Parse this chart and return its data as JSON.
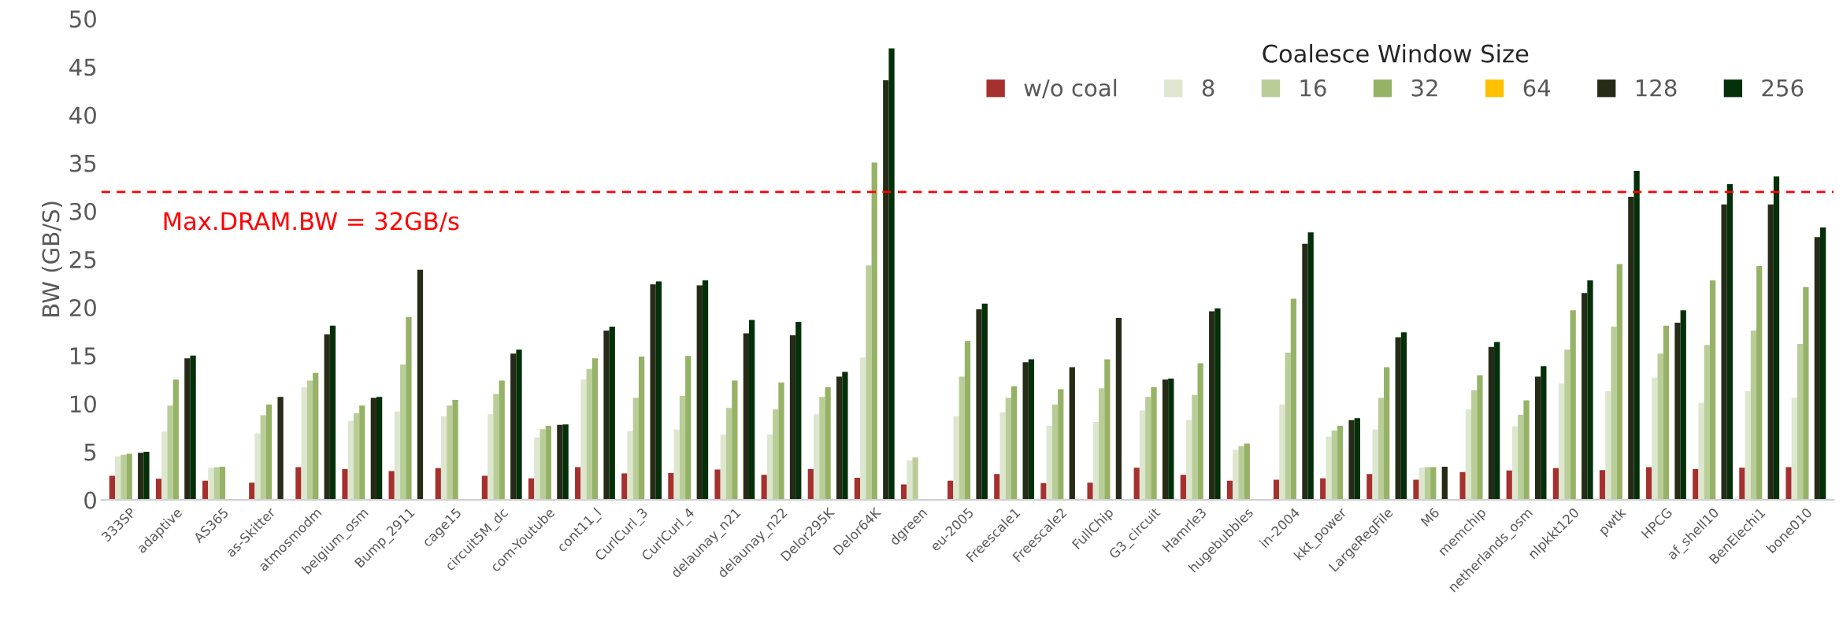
{
  "chart_data": {
    "type": "bar",
    "ylabel": "BW (GB/S)",
    "legend_title": "Coalesce Window Size",
    "legend": "top right",
    "grid": false,
    "ylim": [
      0,
      50
    ],
    "yticks": [
      0,
      5,
      10,
      15,
      20,
      25,
      30,
      35,
      40,
      45,
      50
    ],
    "categories": [
      "333SP",
      "adaptive",
      "AS365",
      "as-Skitter",
      "atmosmodm",
      "belgium_osm",
      "Bump_2911",
      "cage15",
      "circuit5M_dc",
      "com-Youtube",
      "cont11_l",
      "CurlCurl_3",
      "CurlCurl_4",
      "delaunay_n21",
      "delaunay_n22",
      "Delor295K",
      "Delor64K",
      "dgreen",
      "eu-2005",
      "Freescale1",
      "Freescale2",
      "FullChip",
      "G3_circuit",
      "Hamrle3",
      "hugebubbles",
      "in-2004",
      "kkt_power",
      "LargeRegFile",
      "M6",
      "memchip",
      "netherlands_osm",
      "nlpkkt120",
      "pwtk",
      "HPCG",
      "af_shell10",
      "BenElechi1",
      "bone010"
    ],
    "series": [
      {
        "name": "w/o coal",
        "color": "#a5302e",
        "values": [
          2.5,
          2.2,
          2.0,
          1.8,
          3.4,
          3.2,
          3.0,
          3.3,
          2.5,
          2.25,
          3.4,
          2.75,
          2.8,
          3.15,
          2.6,
          3.2,
          2.3,
          1.6,
          2.0,
          2.7,
          1.75,
          1.8,
          3.35,
          2.6,
          2.0,
          2.1,
          2.25,
          2.7,
          2.1,
          2.9,
          3.05,
          3.3,
          3.1,
          3.4,
          3.2,
          3.35,
          3.4
        ]
      },
      {
        "name": "8",
        "color": "#dde7cf",
        "values": [
          4.5,
          7.1,
          3.35,
          6.9,
          11.7,
          8.2,
          9.2,
          8.7,
          8.9,
          6.5,
          12.5,
          7.15,
          7.3,
          6.8,
          6.8,
          8.9,
          14.8,
          4.1,
          8.7,
          9.1,
          7.7,
          8.1,
          9.3,
          8.3,
          5.2,
          9.9,
          6.6,
          7.3,
          3.35,
          9.4,
          7.65,
          12.1,
          11.3,
          12.7,
          10.1,
          11.3,
          10.6
        ]
      },
      {
        "name": "16",
        "color": "#b9cd98",
        "values": [
          4.7,
          9.8,
          3.4,
          8.8,
          12.4,
          9.0,
          14.05,
          9.8,
          11.0,
          7.35,
          13.6,
          10.6,
          10.8,
          9.55,
          9.4,
          10.7,
          24.35,
          4.4,
          12.8,
          10.6,
          9.9,
          11.6,
          10.7,
          10.9,
          5.6,
          15.3,
          7.2,
          10.6,
          3.4,
          11.4,
          8.85,
          15.6,
          18.0,
          15.2,
          16.1,
          17.6,
          16.2
        ]
      },
      {
        "name": "32",
        "color": "#96b266",
        "values": [
          4.8,
          12.5,
          3.45,
          9.9,
          13.2,
          9.8,
          19.0,
          10.4,
          12.4,
          7.7,
          14.7,
          14.9,
          14.95,
          12.4,
          12.2,
          11.7,
          35.05,
          null,
          16.5,
          11.8,
          11.5,
          14.6,
          11.7,
          14.2,
          5.85,
          20.9,
          7.7,
          13.8,
          3.4,
          12.95,
          10.35,
          19.7,
          24.5,
          18.1,
          22.8,
          24.3,
          22.1
        ]
      },
      {
        "name": "64",
        "color": "#ffc000",
        "values": [
          null,
          null,
          null,
          null,
          null,
          null,
          null,
          null,
          null,
          null,
          null,
          null,
          null,
          null,
          null,
          null,
          null,
          null,
          null,
          null,
          null,
          null,
          null,
          null,
          null,
          null,
          null,
          null,
          null,
          null,
          null,
          null,
          null,
          null,
          null,
          null,
          null
        ]
      },
      {
        "name": "128",
        "color": "#262b17",
        "values": [
          4.9,
          14.7,
          null,
          10.7,
          17.2,
          10.6,
          23.9,
          null,
          15.2,
          7.8,
          17.6,
          22.4,
          22.3,
          17.3,
          17.1,
          12.8,
          43.6,
          null,
          19.8,
          14.3,
          13.8,
          18.9,
          12.5,
          19.6,
          null,
          26.6,
          8.3,
          16.9,
          3.45,
          15.9,
          12.8,
          21.5,
          31.5,
          18.4,
          30.7,
          30.7,
          27.3
        ]
      },
      {
        "name": "256",
        "color": "#033009",
        "values": [
          5.0,
          15.0,
          null,
          null,
          18.1,
          10.7,
          null,
          null,
          15.6,
          7.85,
          18.0,
          22.7,
          22.8,
          18.7,
          18.5,
          13.3,
          46.9,
          null,
          20.4,
          14.6,
          null,
          null,
          12.6,
          19.9,
          null,
          27.8,
          8.5,
          17.4,
          null,
          16.4,
          13.9,
          22.8,
          34.2,
          19.7,
          32.8,
          33.6,
          28.3
        ]
      }
    ],
    "ref_lines": [
      {
        "axis": "y",
        "value": 32,
        "label": "Max.DRAM.BW = 32GB/s",
        "color": "#ff0000",
        "line_style": "dashed"
      }
    ]
  }
}
